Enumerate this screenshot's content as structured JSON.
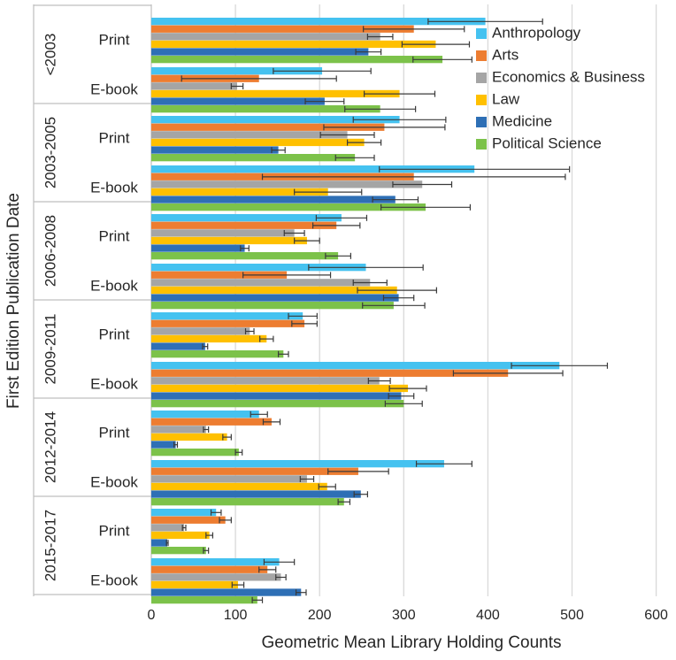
{
  "chart_data": {
    "type": "bar",
    "orientation": "horizontal",
    "xlabel": "Geometric Mean Library Holding Counts",
    "ylabel": "First Edition Publication Date",
    "xlim": [
      0,
      600
    ],
    "xticks": [
      "0",
      "100",
      "200",
      "300",
      "400",
      "500",
      "600"
    ],
    "grid": "vertical",
    "legend_position": "top-right",
    "groups": [
      {
        "label": "<2003",
        "formats": [
          {
            "label": "Print",
            "values": [
              397,
              312,
              272,
              338,
              258,
              346
            ],
            "err": [
              68,
              60,
              15,
              40,
              15,
              35
            ]
          },
          {
            "label": "E-book",
            "values": [
              203,
              128,
              102,
              295,
              206,
              272
            ],
            "err": [
              58,
              92,
              7,
              42,
              23,
              42
            ]
          }
        ]
      },
      {
        "label": "2003-2005",
        "formats": [
          {
            "label": "Print",
            "values": [
              295,
              277,
              233,
              253,
              151,
              242
            ],
            "err": [
              55,
              72,
              32,
              20,
              8,
              23
            ]
          },
          {
            "label": "E-book",
            "values": [
              384,
              312,
              322,
              210,
              290,
              326
            ],
            "err": [
              113,
              180,
              35,
              40,
              27,
              53
            ]
          }
        ]
      },
      {
        "label": "2006-2008",
        "formats": [
          {
            "label": "Print",
            "values": [
              226,
              220,
              170,
              185,
              111,
              222
            ],
            "err": [
              30,
              28,
              12,
              15,
              5,
              15
            ]
          },
          {
            "label": "E-book",
            "values": [
              255,
              161,
              260,
              292,
              294,
              288
            ],
            "err": [
              68,
              52,
              20,
              47,
              18,
              37
            ]
          }
        ]
      },
      {
        "label": "2009-2011",
        "formats": [
          {
            "label": "Print",
            "values": [
              180,
              182,
              117,
              137,
              64,
              157
            ],
            "err": [
              17,
              15,
              5,
              8,
              3,
              6
            ]
          },
          {
            "label": "E-book",
            "values": [
              485,
              424,
              271,
              305,
              297,
              300
            ],
            "err": [
              57,
              65,
              13,
              22,
              15,
              22
            ]
          }
        ]
      },
      {
        "label": "2012-2014",
        "formats": [
          {
            "label": "Print",
            "values": [
              128,
              143,
              65,
              90,
              29,
              104
            ],
            "err": [
              10,
              10,
              3,
              5,
              2,
              4
            ]
          },
          {
            "label": "E-book",
            "values": [
              348,
              246,
              185,
              209,
              249,
              229
            ],
            "err": [
              33,
              36,
              8,
              10,
              8,
              7
            ]
          }
        ]
      },
      {
        "label": "2015-2017",
        "formats": [
          {
            "label": "Print",
            "values": [
              77,
              88,
              39,
              69,
              19,
              65
            ],
            "err": [
              6,
              7,
              2,
              4,
              1,
              3
            ]
          },
          {
            "label": "E-book",
            "values": [
              152,
              138,
              154,
              103,
              178,
              126
            ],
            "err": [
              18,
              10,
              6,
              7,
              6,
              6
            ]
          }
        ]
      }
    ],
    "series": [
      {
        "name": "Anthropology",
        "color": "#45c2f0"
      },
      {
        "name": "Arts",
        "color": "#ed7d31"
      },
      {
        "name": "Economics & Business",
        "color": "#a5a5a5"
      },
      {
        "name": "Law",
        "color": "#ffc000"
      },
      {
        "name": "Medicine",
        "color": "#2e6fb5"
      },
      {
        "name": "Political Science",
        "color": "#7cc24a"
      }
    ]
  }
}
